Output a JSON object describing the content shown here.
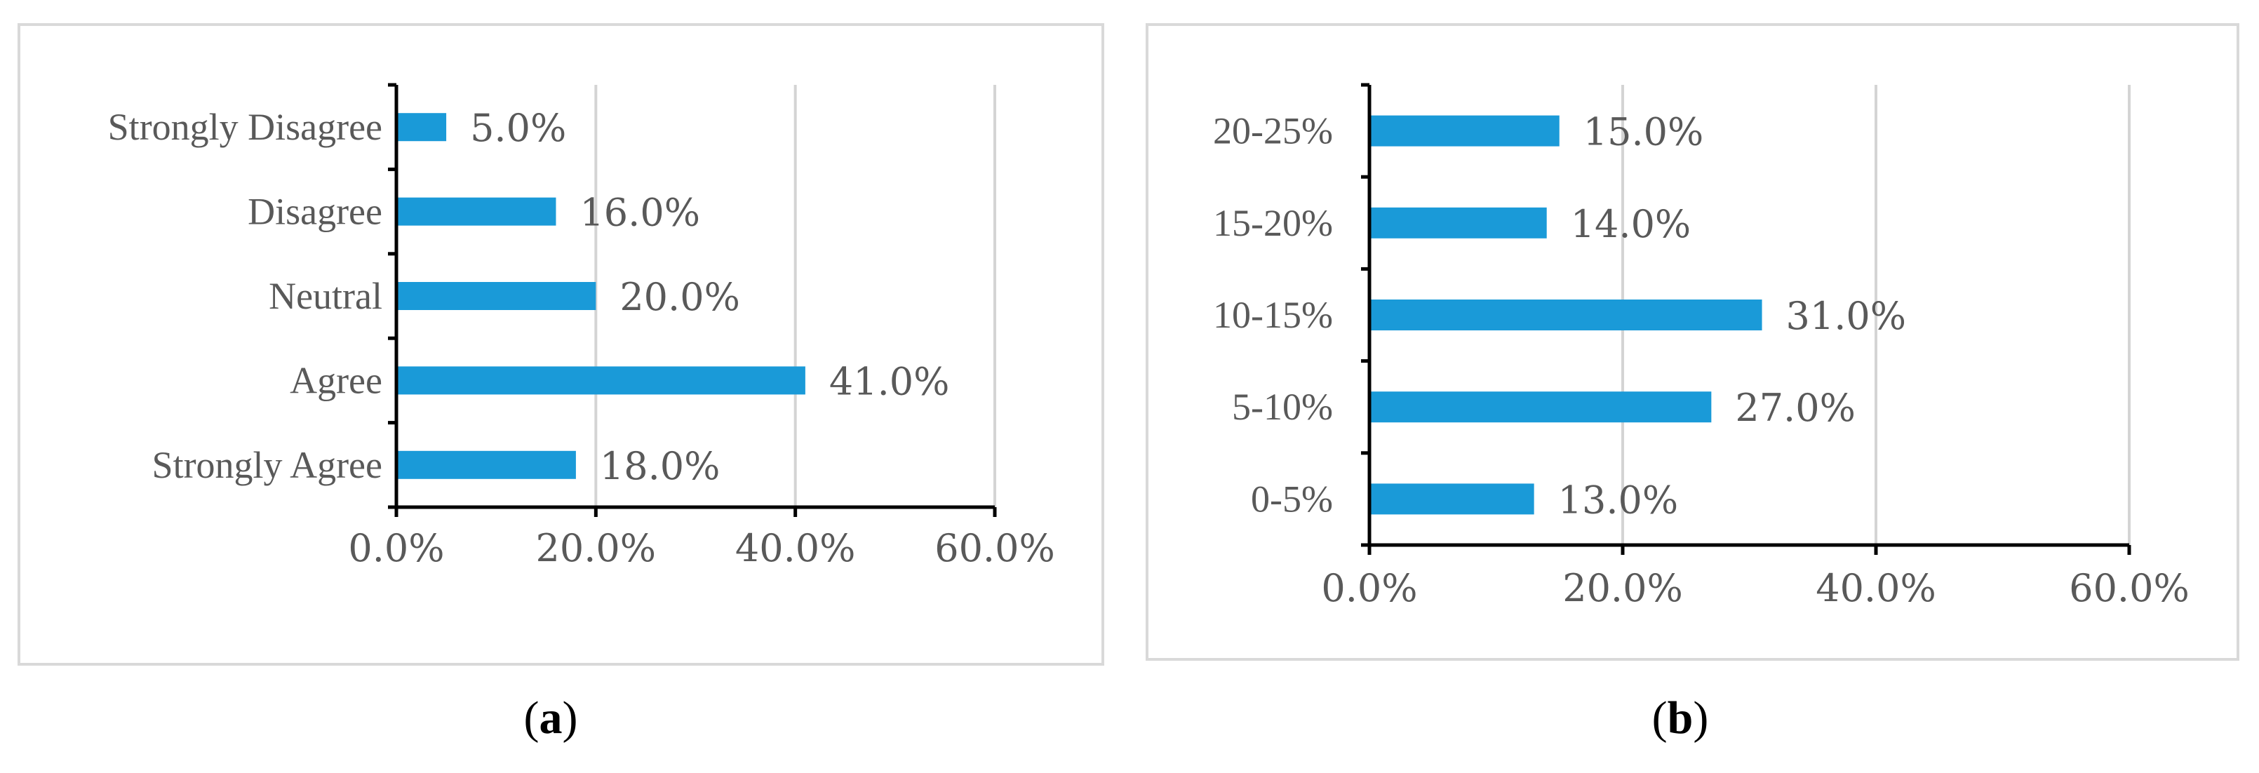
{
  "chart_data": [
    {
      "type": "bar",
      "orientation": "horizontal",
      "panel_label": "a",
      "categories": [
        "Strongly Disagree",
        "Disagree",
        "Neutral",
        "Agree",
        "Strongly Agree"
      ],
      "values": [
        5.0,
        16.0,
        20.0,
        41.0,
        18.0
      ],
      "data_labels": [
        "5.0%",
        "16.0%",
        "20.0%",
        "41.0%",
        "18.0%"
      ],
      "xlim": [
        0,
        60
      ],
      "x_ticks": [
        0,
        20,
        40,
        60
      ],
      "x_tick_labels": [
        "0.0%",
        "20.0%",
        "40.0%",
        "60.0%"
      ],
      "grid": true,
      "color": "#1a9ad8"
    },
    {
      "type": "bar",
      "orientation": "horizontal",
      "panel_label": "b",
      "categories": [
        "20-25%",
        "15-20%",
        "10-15%",
        "5-10%",
        "0-5%"
      ],
      "values": [
        15.0,
        14.0,
        31.0,
        27.0,
        13.0
      ],
      "data_labels": [
        "15.0%",
        "14.0%",
        "31.0%",
        "27.0%",
        "13.0%"
      ],
      "xlim": [
        0,
        60
      ],
      "x_ticks": [
        0,
        20,
        40,
        60
      ],
      "x_tick_labels": [
        "0.0%",
        "20.0%",
        "40.0%",
        "60.0%"
      ],
      "grid": true,
      "color": "#1a9ad8"
    }
  ]
}
